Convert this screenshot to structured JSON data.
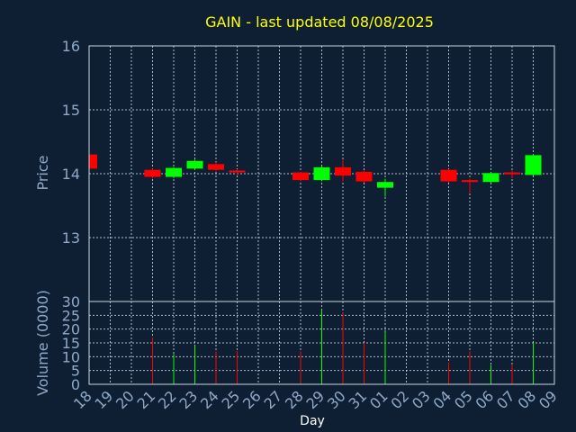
{
  "chart_data": {
    "type": "candlestick",
    "title": "GAIN - last updated 08/08/2025",
    "xlabel": "Day",
    "price_panel": {
      "ylabel": "Price",
      "ylim": [
        12.0,
        16.0
      ],
      "yticks": [
        13,
        14,
        15,
        16
      ]
    },
    "volume_panel": {
      "ylabel": "Volume (0000)",
      "ylim": [
        0,
        30
      ],
      "yticks": [
        0,
        5,
        10,
        15,
        20,
        25,
        30
      ]
    },
    "x_ticks": [
      "18",
      "19",
      "20",
      "21",
      "22",
      "23",
      "24",
      "25",
      "26",
      "27",
      "28",
      "29",
      "30",
      "31",
      "01",
      "02",
      "03",
      "04",
      "05",
      "06",
      "07",
      "08",
      "09"
    ],
    "colors": {
      "up": "#00ff00",
      "down": "#ff0000"
    },
    "candles": [
      {
        "day": "18",
        "open": 14.3,
        "close": 14.08,
        "high": 14.3,
        "low": 14.05,
        "volume": 0
      },
      {
        "day": "21",
        "open": 14.06,
        "close": 13.95,
        "high": 14.08,
        "low": 13.93,
        "volume": 17
      },
      {
        "day": "22",
        "open": 13.95,
        "close": 14.09,
        "high": 14.1,
        "low": 13.93,
        "volume": 11
      },
      {
        "day": "23",
        "open": 14.08,
        "close": 14.2,
        "high": 14.22,
        "low": 14.06,
        "volume": 14
      },
      {
        "day": "24",
        "open": 14.15,
        "close": 14.06,
        "high": 14.18,
        "low": 14.04,
        "volume": 12
      },
      {
        "day": "25",
        "open": 14.05,
        "close": 14.02,
        "high": 14.07,
        "low": 13.98,
        "volume": 12
      },
      {
        "day": "28",
        "open": 14.02,
        "close": 13.9,
        "high": 14.03,
        "low": 13.88,
        "volume": 12
      },
      {
        "day": "29",
        "open": 13.9,
        "close": 14.1,
        "high": 14.12,
        "low": 13.88,
        "volume": 27
      },
      {
        "day": "30",
        "open": 14.1,
        "close": 13.97,
        "high": 14.22,
        "low": 13.88,
        "volume": 26
      },
      {
        "day": "31",
        "open": 14.03,
        "close": 13.88,
        "high": 14.05,
        "low": 13.86,
        "volume": 15
      },
      {
        "day": "01",
        "open": 13.78,
        "close": 13.87,
        "high": 13.92,
        "low": 13.64,
        "volume": 19
      },
      {
        "day": "04",
        "open": 14.06,
        "close": 13.88,
        "high": 14.07,
        "low": 13.86,
        "volume": 8
      },
      {
        "day": "05",
        "open": 13.9,
        "close": 13.87,
        "high": 13.92,
        "low": 13.7,
        "volume": 12
      },
      {
        "day": "06",
        "open": 13.87,
        "close": 14.01,
        "high": 14.02,
        "low": 13.85,
        "volume": 7
      },
      {
        "day": "07",
        "open": 14.02,
        "close": 13.99,
        "high": 14.05,
        "low": 13.93,
        "volume": 7
      },
      {
        "day": "08",
        "open": 13.98,
        "close": 14.29,
        "high": 14.3,
        "low": 13.97,
        "volume": 15
      }
    ]
  }
}
